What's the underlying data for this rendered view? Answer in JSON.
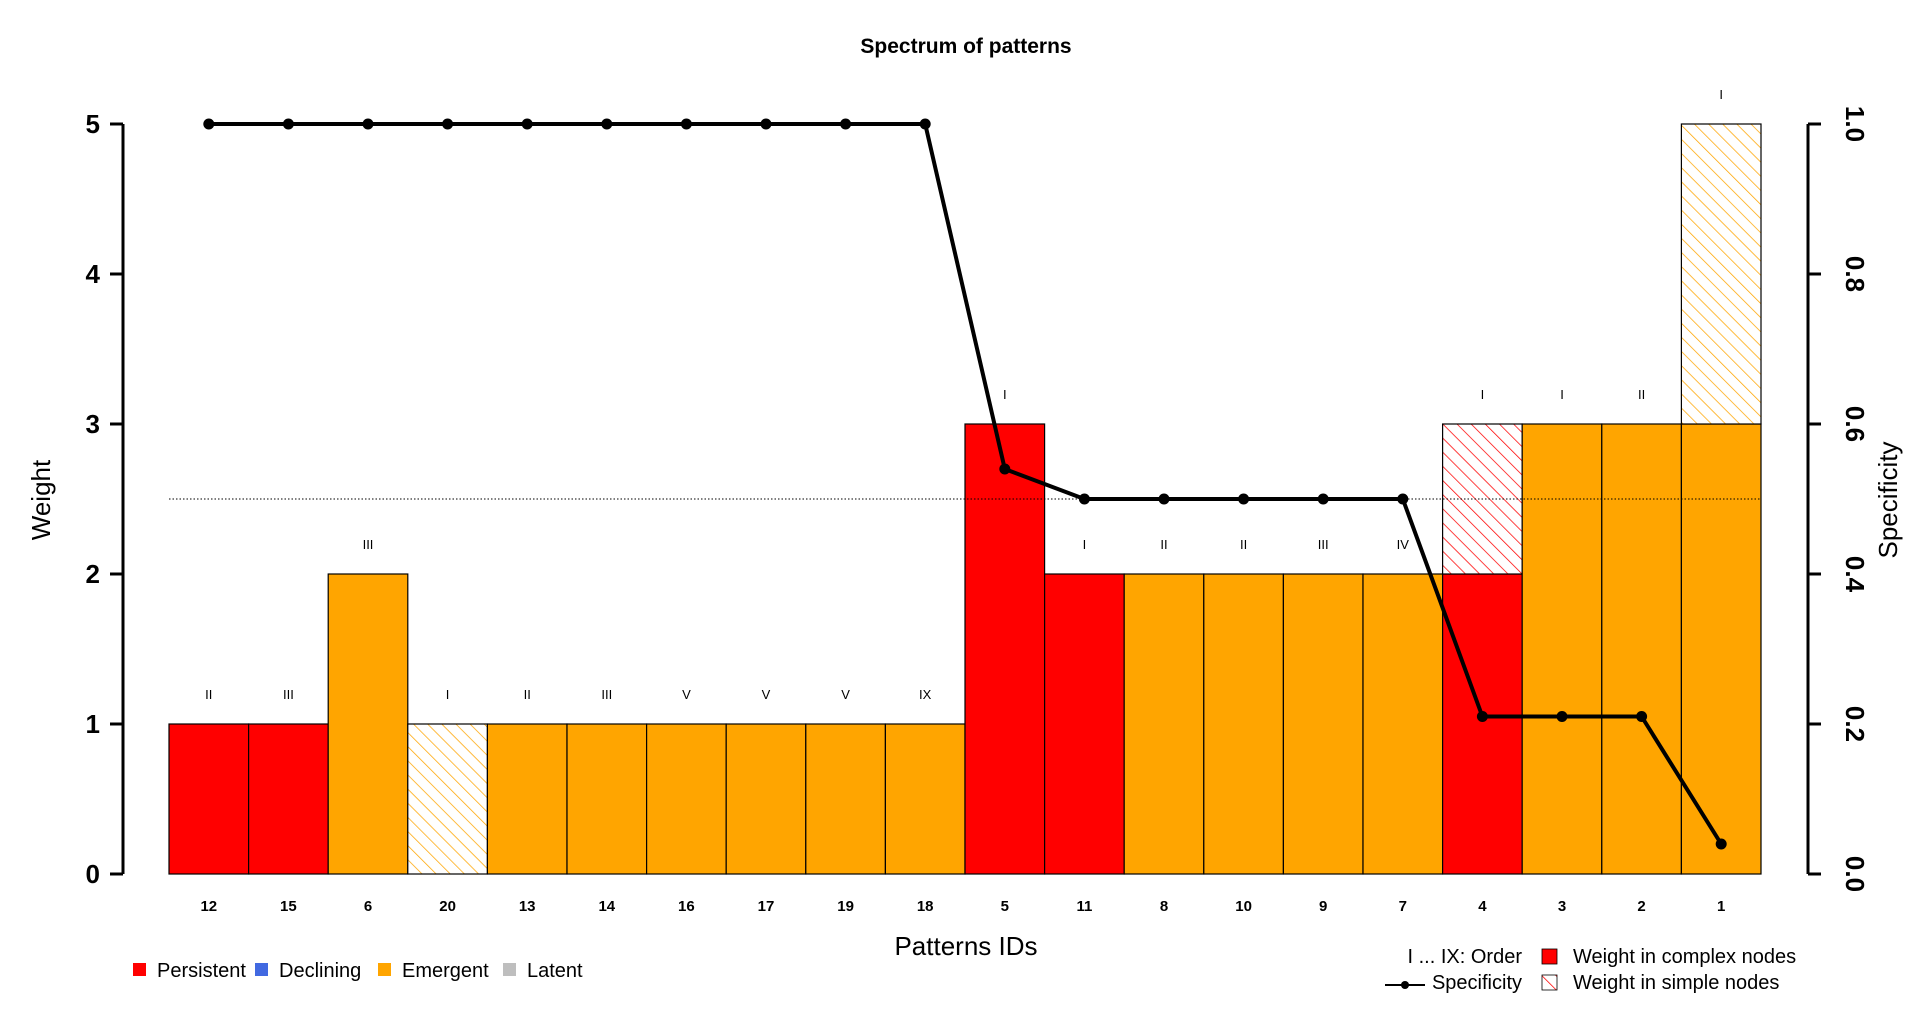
{
  "chart_data": {
    "type": "bar",
    "title": "Spectrum of patterns",
    "xlabel": "Patterns IDs",
    "ylabel": "Weight",
    "y2label": "Specificity",
    "ylim": [
      0,
      5
    ],
    "y2lim": [
      0,
      1
    ],
    "yticks": [
      "0",
      "1",
      "2",
      "3",
      "4",
      "5"
    ],
    "y2ticks": [
      "0.0",
      "0.2",
      "0.4",
      "0.6",
      "0.8",
      "1.0"
    ],
    "reference_line": 0.5,
    "categories": [
      "12",
      "15",
      "6",
      "20",
      "13",
      "14",
      "16",
      "17",
      "19",
      "18",
      "5",
      "11",
      "8",
      "10",
      "9",
      "7",
      "4",
      "3",
      "2",
      "1"
    ],
    "orders": [
      "II",
      "III",
      "III",
      "I",
      "II",
      "III",
      "V",
      "V",
      "V",
      "IX",
      "I",
      "I",
      "II",
      "II",
      "III",
      "IV",
      "I",
      "I",
      "II",
      "I"
    ],
    "groups": [
      "Persistent",
      "Persistent",
      "Emergent",
      "Emergent",
      "Emergent",
      "Emergent",
      "Emergent",
      "Emergent",
      "Emergent",
      "Emergent",
      "Persistent",
      "Persistent",
      "Emergent",
      "Emergent",
      "Emergent",
      "Emergent",
      "Persistent",
      "Emergent",
      "Emergent",
      "Emergent"
    ],
    "series": [
      {
        "name": "Weight in complex nodes",
        "values": [
          1,
          1,
          2,
          0,
          1,
          1,
          1,
          1,
          1,
          1,
          3,
          2,
          2,
          2,
          2,
          2,
          2,
          3,
          3,
          3
        ]
      },
      {
        "name": "Weight in simple nodes",
        "values": [
          0,
          0,
          0,
          1,
          0,
          0,
          0,
          0,
          0,
          0,
          0,
          0,
          0,
          0,
          0,
          0,
          1,
          0,
          0,
          2
        ]
      }
    ],
    "specificity": [
      1.0,
      1.0,
      1.0,
      1.0,
      1.0,
      1.0,
      1.0,
      1.0,
      1.0,
      1.0,
      0.54,
      0.5,
      0.5,
      0.5,
      0.5,
      0.5,
      0.21,
      0.21,
      0.21,
      0.04
    ],
    "group_colors": {
      "Persistent": "#ff0000",
      "Declining": "#4169e1",
      "Emergent": "#ffa500",
      "Latent": "#bebebe"
    },
    "legend_left": [
      "Persistent",
      "Declining",
      "Emergent",
      "Latent"
    ],
    "legend_right": {
      "order_key": "I ... IX:  Order",
      "specificity": "Specificity",
      "complex": "Weight in complex nodes",
      "simple": "Weight in simple nodes"
    }
  }
}
